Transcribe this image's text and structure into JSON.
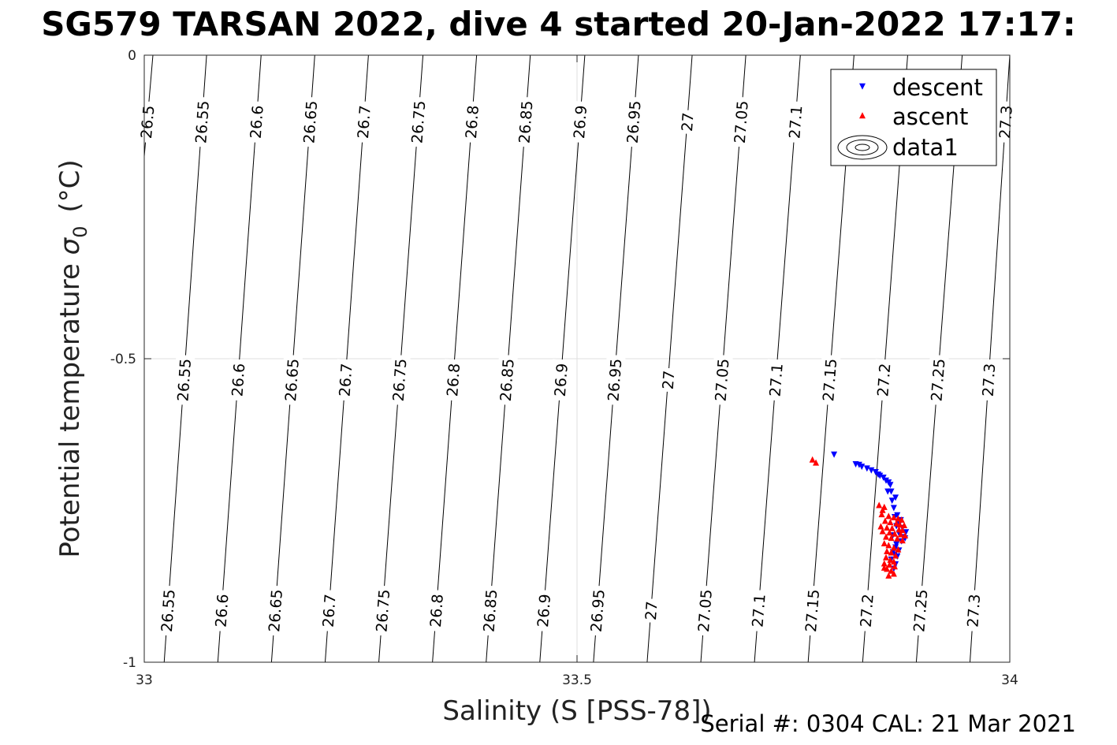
{
  "chart_data": {
    "type": "scatter",
    "title": "SG579 TARSAN 2022, dive 4 started 20-Jan-2022 17:17:",
    "xlabel": "Salinity (S [PSS-78])",
    "ylabel_main": "Potential temperature",
    "ylabel_symbol": "σ",
    "ylabel_subscript": "0",
    "ylabel_unit": "(°C)",
    "xlim": [
      33,
      34
    ],
    "ylim": [
      -1,
      0
    ],
    "xticks": [
      33,
      33.5,
      34
    ],
    "yticks": [
      0,
      -0.5,
      -1
    ],
    "xtick_labels": [
      "33",
      "33.5",
      "34"
    ],
    "ytick_labels": [
      "0",
      "-0.5",
      "-1"
    ],
    "grid": true,
    "legend_position": "top-right",
    "legend": [
      "descent",
      "ascent",
      "data1"
    ],
    "contours": {
      "levels": [
        26.5,
        26.55,
        26.6,
        26.65,
        26.7,
        26.75,
        26.8,
        26.85,
        26.9,
        26.95,
        27,
        27.05,
        27.1,
        27.15,
        27.2,
        27.25,
        27.3
      ],
      "labels": [
        "26.5",
        "26.55",
        "26.6",
        "26.65",
        "26.7",
        "26.75",
        "26.8",
        "26.85",
        "26.9",
        "26.95",
        "27",
        "27.05",
        "27.1",
        "27.15",
        "27.2",
        "27.25",
        "27.3"
      ],
      "s_at_top": [
        33.01,
        33.072,
        33.135,
        33.197,
        33.259,
        33.322,
        33.384,
        33.446,
        33.509,
        33.571,
        33.633,
        33.695,
        33.758,
        33.82,
        33.882,
        33.945,
        34.0
      ],
      "s_at_bottom": [
        32.95,
        33.023,
        33.085,
        33.147,
        33.209,
        33.271,
        33.333,
        33.395,
        33.457,
        33.519,
        33.581,
        33.643,
        33.705,
        33.767,
        33.83,
        33.892,
        33.954
      ],
      "label_rows": [
        {
          "theta": -0.11,
          "labels": [
            "26.5",
            "26.55",
            "26.6",
            "26.65",
            "26.7",
            "26.75",
            "26.8",
            "26.85",
            "26.9",
            "26.95",
            "27",
            "27.05",
            "27.1",
            "27.3"
          ]
        },
        {
          "theta": -0.535,
          "labels": [
            "26.55",
            "26.6",
            "26.65",
            "26.7",
            "26.75",
            "26.8",
            "26.85",
            "26.9",
            "26.95",
            "27",
            "27.05",
            "27.1",
            "27.15",
            "27.2",
            "27.25",
            "27.3"
          ]
        },
        {
          "theta": -0.915,
          "labels": [
            "26.55",
            "26.6",
            "26.65",
            "26.7",
            "26.75",
            "26.8",
            "26.85",
            "26.9",
            "26.95",
            "27",
            "27.05",
            "27.1",
            "27.15",
            "27.2",
            "27.25",
            "27.3"
          ]
        }
      ]
    },
    "series": [
      {
        "name": "descent",
        "color": "#0000ff",
        "marker": "triangle-down",
        "points": [
          [
            33.797,
            -0.657
          ],
          [
            33.822,
            -0.673
          ],
          [
            33.826,
            -0.674
          ],
          [
            33.829,
            -0.677
          ],
          [
            33.835,
            -0.68
          ],
          [
            33.84,
            -0.683
          ],
          [
            33.845,
            -0.686
          ],
          [
            33.848,
            -0.69
          ],
          [
            33.85,
            -0.692
          ],
          [
            33.854,
            -0.695
          ],
          [
            33.857,
            -0.7
          ],
          [
            33.86,
            -0.703
          ],
          [
            33.862,
            -0.707
          ],
          [
            33.859,
            -0.718
          ],
          [
            33.863,
            -0.718
          ],
          [
            33.868,
            -0.728
          ],
          [
            33.864,
            -0.733
          ],
          [
            33.866,
            -0.745
          ],
          [
            33.87,
            -0.757
          ],
          [
            33.867,
            -0.76
          ],
          [
            33.874,
            -0.765
          ],
          [
            33.872,
            -0.772
          ],
          [
            33.869,
            -0.775
          ],
          [
            33.876,
            -0.778
          ],
          [
            33.88,
            -0.785
          ],
          [
            33.872,
            -0.787
          ],
          [
            33.865,
            -0.79
          ],
          [
            33.877,
            -0.793
          ],
          [
            33.879,
            -0.795
          ],
          [
            33.875,
            -0.8
          ],
          [
            33.869,
            -0.805
          ],
          [
            33.868,
            -0.81
          ],
          [
            33.872,
            -0.815
          ],
          [
            33.865,
            -0.818
          ],
          [
            33.867,
            -0.822
          ],
          [
            33.87,
            -0.825
          ],
          [
            33.863,
            -0.83
          ],
          [
            33.868,
            -0.838
          ],
          [
            33.866,
            -0.845
          ]
        ]
      },
      {
        "name": "ascent",
        "color": "#ff0000",
        "marker": "triangle-up",
        "points": [
          [
            33.772,
            -0.667
          ],
          [
            33.776,
            -0.672
          ],
          [
            33.849,
            -0.742
          ],
          [
            33.855,
            -0.745
          ],
          [
            33.853,
            -0.75
          ],
          [
            33.852,
            -0.757
          ],
          [
            33.86,
            -0.76
          ],
          [
            33.866,
            -0.762
          ],
          [
            33.871,
            -0.764
          ],
          [
            33.875,
            -0.766
          ],
          [
            33.856,
            -0.768
          ],
          [
            33.862,
            -0.77
          ],
          [
            33.869,
            -0.772
          ],
          [
            33.873,
            -0.774
          ],
          [
            33.878,
            -0.775
          ],
          [
            33.851,
            -0.777
          ],
          [
            33.858,
            -0.779
          ],
          [
            33.864,
            -0.78
          ],
          [
            33.872,
            -0.782
          ],
          [
            33.876,
            -0.783
          ],
          [
            33.853,
            -0.785
          ],
          [
            33.861,
            -0.787
          ],
          [
            33.867,
            -0.789
          ],
          [
            33.874,
            -0.79
          ],
          [
            33.879,
            -0.792
          ],
          [
            33.857,
            -0.794
          ],
          [
            33.863,
            -0.796
          ],
          [
            33.87,
            -0.797
          ],
          [
            33.876,
            -0.8
          ],
          [
            33.855,
            -0.805
          ],
          [
            33.86,
            -0.808
          ],
          [
            33.866,
            -0.812
          ],
          [
            33.871,
            -0.815
          ],
          [
            33.858,
            -0.818
          ],
          [
            33.863,
            -0.82
          ],
          [
            33.868,
            -0.825
          ],
          [
            33.857,
            -0.828
          ],
          [
            33.862,
            -0.832
          ],
          [
            33.866,
            -0.835
          ],
          [
            33.855,
            -0.838
          ],
          [
            33.861,
            -0.84
          ],
          [
            33.867,
            -0.843
          ],
          [
            33.858,
            -0.847
          ],
          [
            33.863,
            -0.85
          ],
          [
            33.866,
            -0.855
          ],
          [
            33.86,
            -0.858
          ],
          [
            33.855,
            -0.845
          ]
        ]
      }
    ]
  },
  "footer": {
    "serial_text": "Serial #: 0304  CAL: 21 Mar 2021"
  }
}
